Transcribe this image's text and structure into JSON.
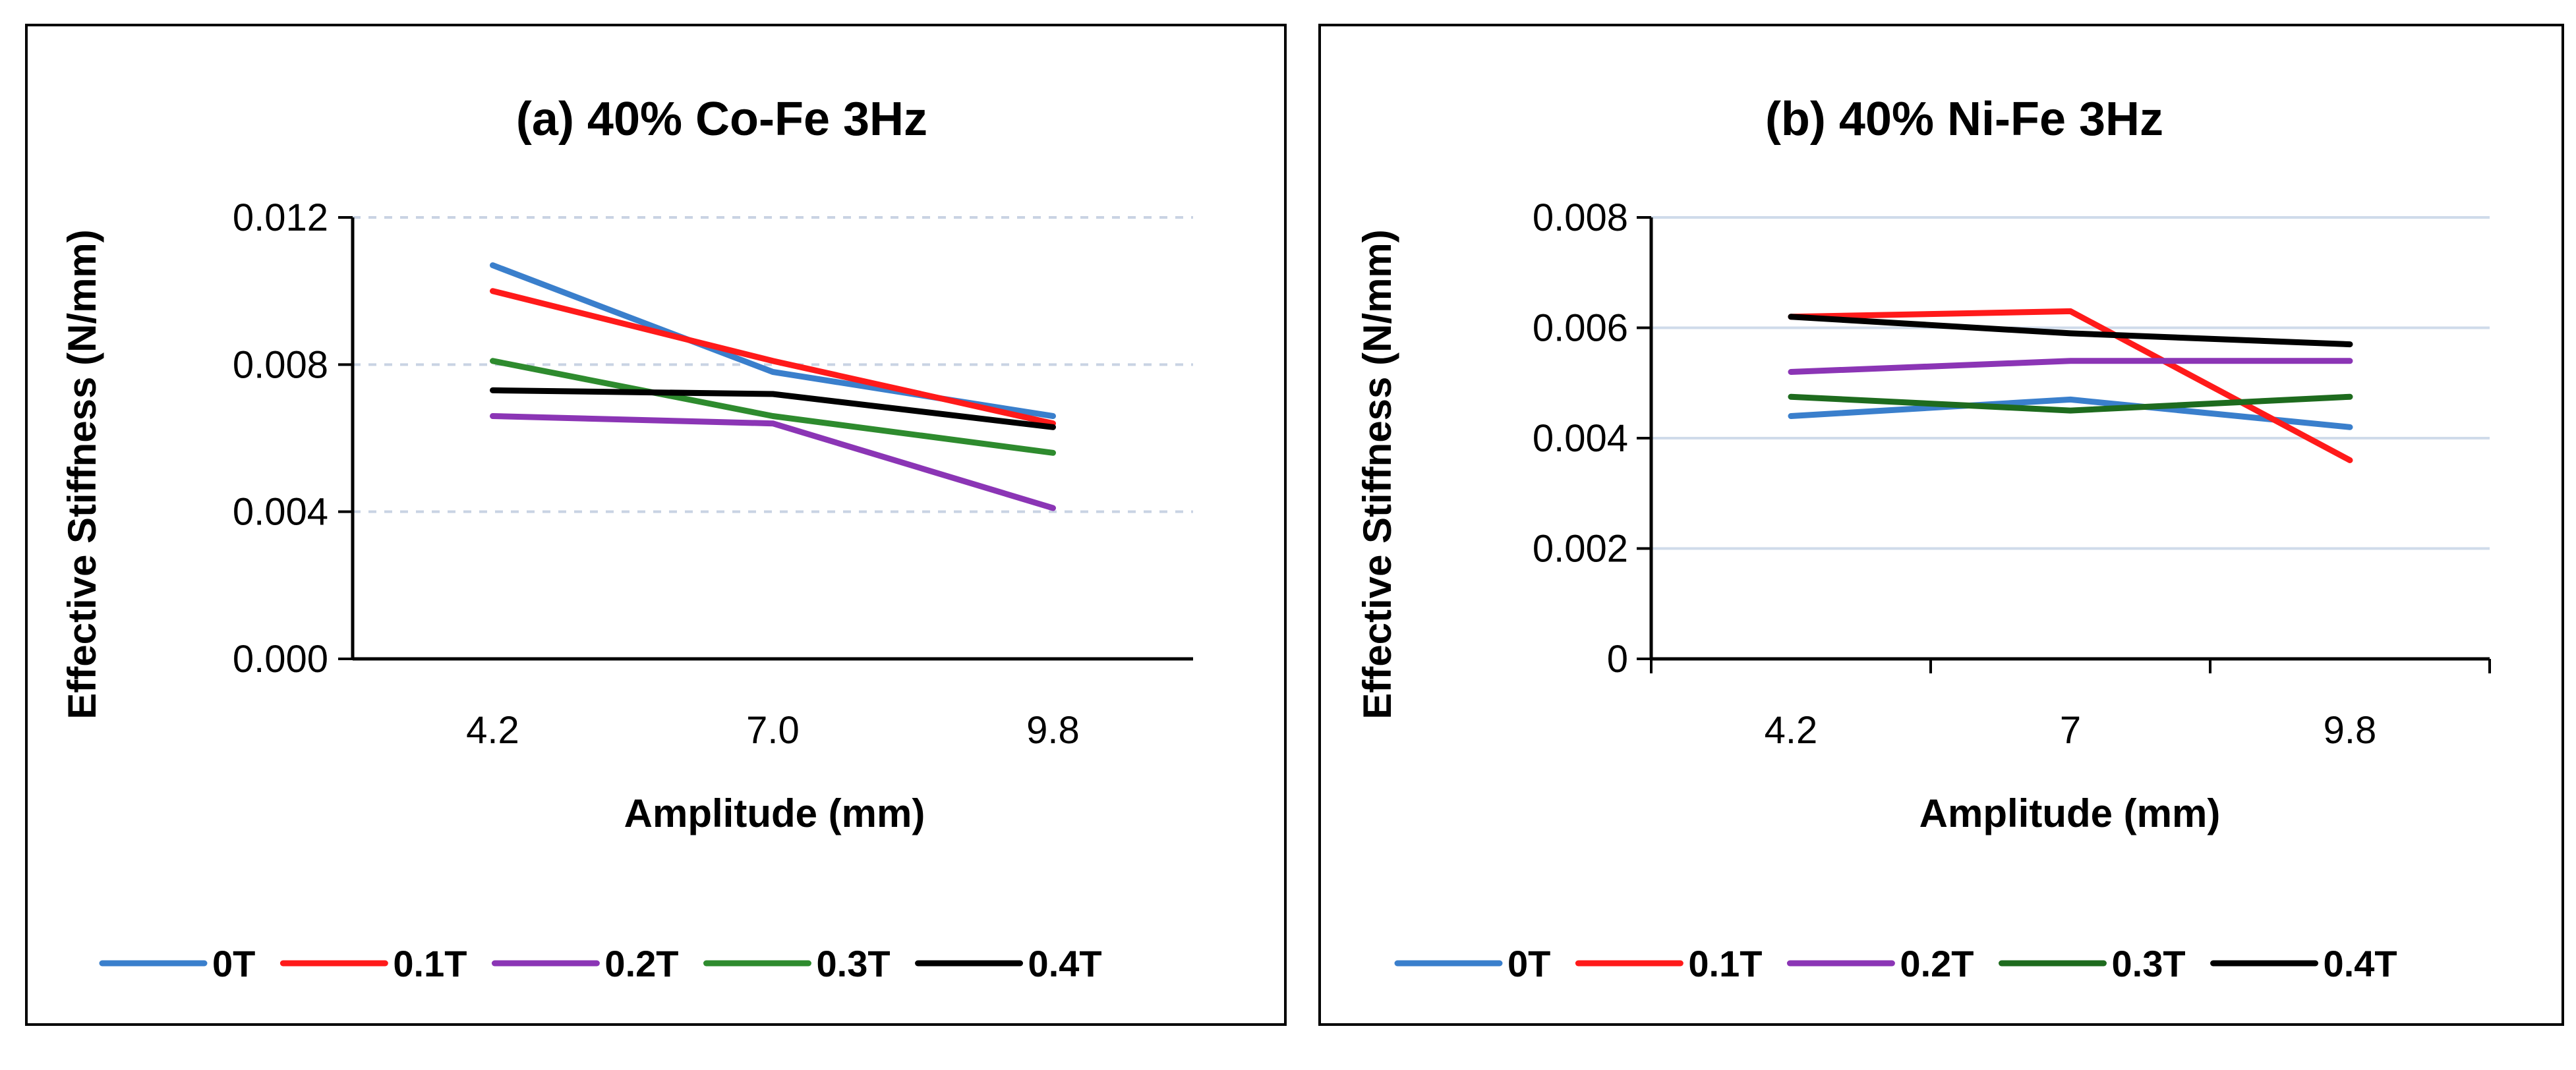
{
  "chart_data": [
    {
      "type": "line",
      "title": "(a) 40% Co-Fe 3Hz",
      "xlabel": "Amplitude (mm)",
      "ylabel": "Effective Stiffness (N/mm)",
      "categories": [
        "4.2",
        "7.0",
        "9.8"
      ],
      "ylim": [
        0,
        0.012
      ],
      "yticks": [
        "0.000",
        "0.004",
        "0.008",
        "0.012"
      ],
      "grid": "dashed horizontal",
      "legend_position": "bottom",
      "series": [
        {
          "name": "0T",
          "color": "#3a7fcc",
          "values": [
            0.0107,
            0.0078,
            0.0066
          ]
        },
        {
          "name": "0.1T",
          "color": "#ff1a1a",
          "values": [
            0.01,
            0.0081,
            0.0064
          ]
        },
        {
          "name": "0.2T",
          "color": "#8b35b5",
          "values": [
            0.0066,
            0.0064,
            0.0041
          ]
        },
        {
          "name": "0.3T",
          "color": "#2e8b2e",
          "values": [
            0.0081,
            0.0066,
            0.0056
          ]
        },
        {
          "name": "0.4T",
          "color": "#000000",
          "values": [
            0.0073,
            0.0072,
            0.0063
          ]
        }
      ]
    },
    {
      "type": "line",
      "title": "(b) 40% Ni-Fe 3Hz",
      "xlabel": "Amplitude (mm)",
      "ylabel": "Effective Stiffness (N/mm)",
      "categories": [
        "4.2",
        "7",
        "9.8"
      ],
      "ylim": [
        0,
        0.008
      ],
      "yticks": [
        "0",
        "0.002",
        "0.004",
        "0.006",
        "0.008"
      ],
      "grid": "solid horizontal",
      "legend_position": "bottom",
      "series": [
        {
          "name": "0T",
          "color": "#3a7fcc",
          "values": [
            0.0044,
            0.0047,
            0.0042
          ]
        },
        {
          "name": "0.1T",
          "color": "#ff1a1a",
          "values": [
            0.0062,
            0.0063,
            0.0036
          ]
        },
        {
          "name": "0.2T",
          "color": "#8b35b5",
          "values": [
            0.0052,
            0.0054,
            0.0054
          ]
        },
        {
          "name": "0.3T",
          "color": "#1e6b1e",
          "values": [
            0.00475,
            0.0045,
            0.00475
          ]
        },
        {
          "name": "0.4T",
          "color": "#000000",
          "values": [
            0.0062,
            0.0059,
            0.0057
          ]
        }
      ]
    }
  ]
}
